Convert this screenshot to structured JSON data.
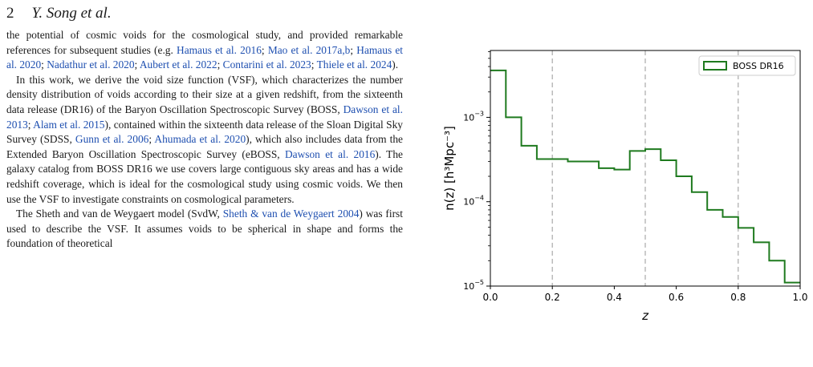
{
  "header": {
    "page_number": "2",
    "running_head": "Y. Song et al."
  },
  "paragraphs": [
    {
      "indent": false,
      "spans": [
        {
          "t": "the potential of cosmic voids for the cosmological study, and provided remarkable references for subsequent studies (e.g. ",
          "c": false
        },
        {
          "t": "Hamaus et al. 2016",
          "c": true
        },
        {
          "t": "; ",
          "c": false
        },
        {
          "t": "Mao et al. 2017a,b",
          "c": true
        },
        {
          "t": "; ",
          "c": false
        },
        {
          "t": "Hamaus et al. 2020",
          "c": true
        },
        {
          "t": "; ",
          "c": false
        },
        {
          "t": "Nadathur et al. 2020",
          "c": true
        },
        {
          "t": "; ",
          "c": false
        },
        {
          "t": "Aubert et al. 2022",
          "c": true
        },
        {
          "t": "; ",
          "c": false
        },
        {
          "t": "Contarini et al. 2023",
          "c": true
        },
        {
          "t": "; ",
          "c": false
        },
        {
          "t": "Thiele et al. 2024",
          "c": true
        },
        {
          "t": ").",
          "c": false
        }
      ]
    },
    {
      "indent": true,
      "spans": [
        {
          "t": "In this work, we derive the void size function (VSF), which characterizes the number density distribution of voids according to their size at a given redshift, from the sixteenth data release (DR16) of the Baryon Oscillation Spectroscopic Survey (BOSS, ",
          "c": false
        },
        {
          "t": "Dawson et al. 2013",
          "c": true
        },
        {
          "t": "; ",
          "c": false
        },
        {
          "t": "Alam et al. 2015",
          "c": true
        },
        {
          "t": "), contained within the sixteenth data release of the Sloan Digital Sky Survey (SDSS, ",
          "c": false
        },
        {
          "t": "Gunn et al. 2006",
          "c": true
        },
        {
          "t": "; ",
          "c": false
        },
        {
          "t": "Ahumada et al. 2020",
          "c": true
        },
        {
          "t": "), which also includes data from the Extended Baryon Oscillation Spectroscopic Survey (eBOSS, ",
          "c": false
        },
        {
          "t": "Dawson et al. 2016",
          "c": true
        },
        {
          "t": "). The galaxy catalog from BOSS DR16 we use covers large contiguous sky areas and has a wide redshift coverage, which is ideal for the cosmological study using cosmic voids. We then use the VSF to investigate constraints on cosmological parameters.",
          "c": false
        }
      ]
    },
    {
      "indent": true,
      "spans": [
        {
          "t": "The Sheth and van de Weygaert model (SvdW, ",
          "c": false
        },
        {
          "t": "Sheth & van de Weygaert 2004",
          "c": true
        },
        {
          "t": ") was first used to describe the VSF. It assumes voids to be spherical in shape and forms the foundation of theoretical",
          "c": false
        }
      ]
    }
  ],
  "chart_data": {
    "type": "line",
    "step": true,
    "series": [
      {
        "name": "BOSS DR16",
        "color": "#1f7a1f",
        "bin_edges": [
          0.0,
          0.05,
          0.1,
          0.15,
          0.2,
          0.25,
          0.3,
          0.35,
          0.4,
          0.45,
          0.5,
          0.55,
          0.6,
          0.65,
          0.7,
          0.75,
          0.8,
          0.85,
          0.9,
          0.95,
          1.0
        ],
        "values": [
          0.0036,
          0.001,
          0.00046,
          0.00032,
          0.00032,
          0.0003,
          0.0003,
          0.00025,
          0.00024,
          0.0004,
          0.00042,
          0.00031,
          0.0002,
          0.00013,
          8e-05,
          6.6e-05,
          4.9e-05,
          3.3e-05,
          2e-05,
          1.1e-05
        ]
      }
    ],
    "xlabel": "z",
    "ylabel": "n(z) [h³Mpc⁻³]",
    "xlim": [
      0.0,
      1.0
    ],
    "ylim": [
      1e-05,
      0.0062
    ],
    "yscale": "log",
    "x_ticks": [
      "0.0",
      "0.2",
      "0.4",
      "0.6",
      "0.8",
      "1.0"
    ],
    "y_ticks": [
      {
        "base": "10",
        "exp": "−5"
      },
      {
        "base": "10",
        "exp": "−4"
      },
      {
        "base": "10",
        "exp": "−3"
      }
    ],
    "vlines": [
      0.2,
      0.5,
      0.8
    ],
    "legend_position": "top-right",
    "grid": false
  }
}
